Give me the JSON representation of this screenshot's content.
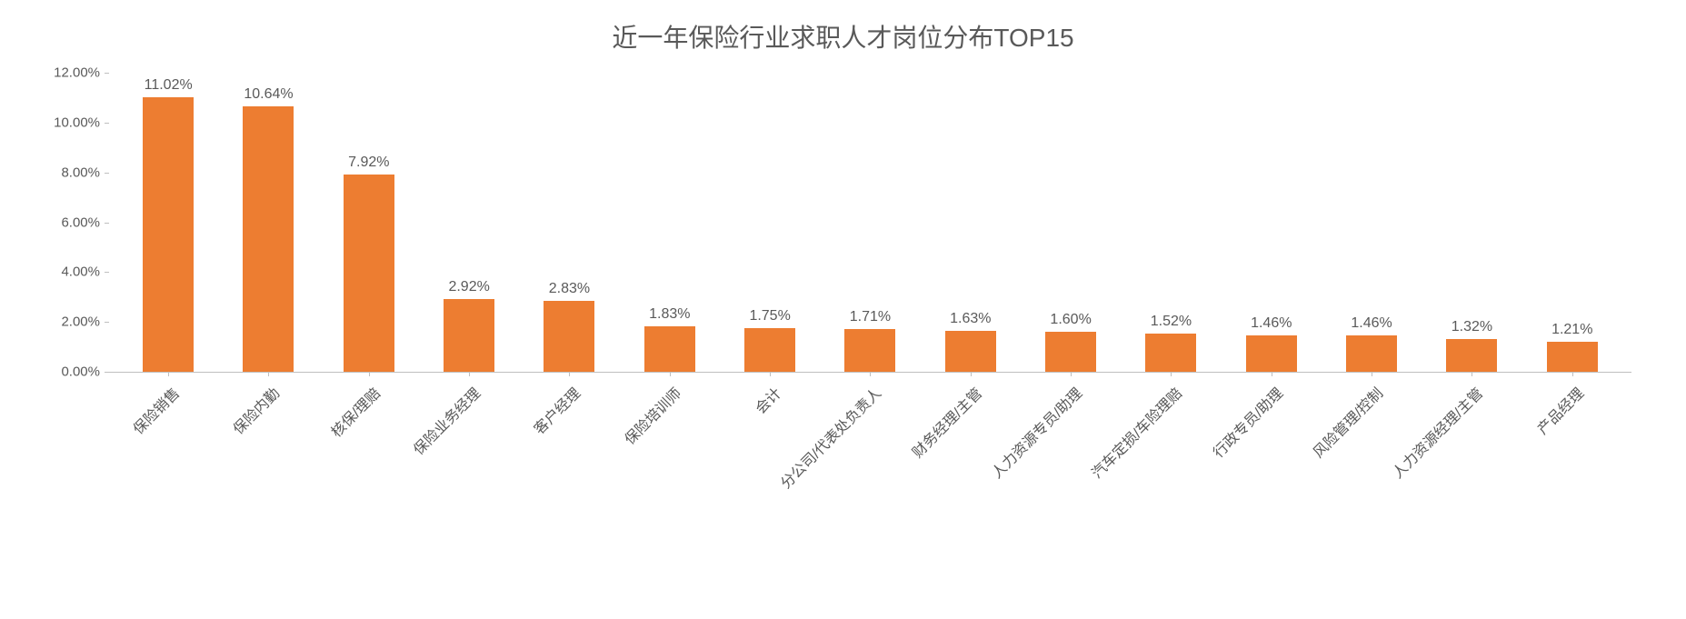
{
  "chart": {
    "type": "bar",
    "title": "近一年保险行业求职人才岗位分布TOP15",
    "title_fontsize": 28,
    "title_color": "#595959",
    "categories": [
      "保险销售",
      "保险内勤",
      "核保/理赔",
      "保险业务经理",
      "客户经理",
      "保险培训师",
      "会计",
      "分公司/代表处负责人",
      "财务经理/主管",
      "人力资源专员/助理",
      "汽车定损/车险理赔",
      "行政专员/助理",
      "风险管理/控制",
      "人力资源经理/主管",
      "产品经理"
    ],
    "values": [
      11.02,
      10.64,
      7.92,
      2.92,
      2.83,
      1.83,
      1.75,
      1.71,
      1.63,
      1.6,
      1.52,
      1.46,
      1.46,
      1.32,
      1.21
    ],
    "value_labels": [
      "11.02%",
      "10.64%",
      "7.92%",
      "2.92%",
      "2.83%",
      "1.83%",
      "1.75%",
      "1.71%",
      "1.63%",
      "1.60%",
      "1.52%",
      "1.46%",
      "1.46%",
      "1.32%",
      "1.21%"
    ],
    "bar_color": "#ed7d31",
    "background_color": "#ffffff",
    "axis_text_color": "#595959",
    "axis_line_color": "#bfbfbf",
    "label_fontsize": 16,
    "value_label_fontsize": 16,
    "yticks": [
      0.0,
      2.0,
      4.0,
      6.0,
      8.0,
      10.0,
      12.0
    ],
    "ytick_labels": [
      "0.00%",
      "2.00%",
      "4.00%",
      "6.00%",
      "8.00%",
      "10.00%",
      "12.00%"
    ],
    "ylim": [
      0,
      12
    ],
    "xlabel_rotation": -45,
    "bar_width_ratio": 0.52
  }
}
